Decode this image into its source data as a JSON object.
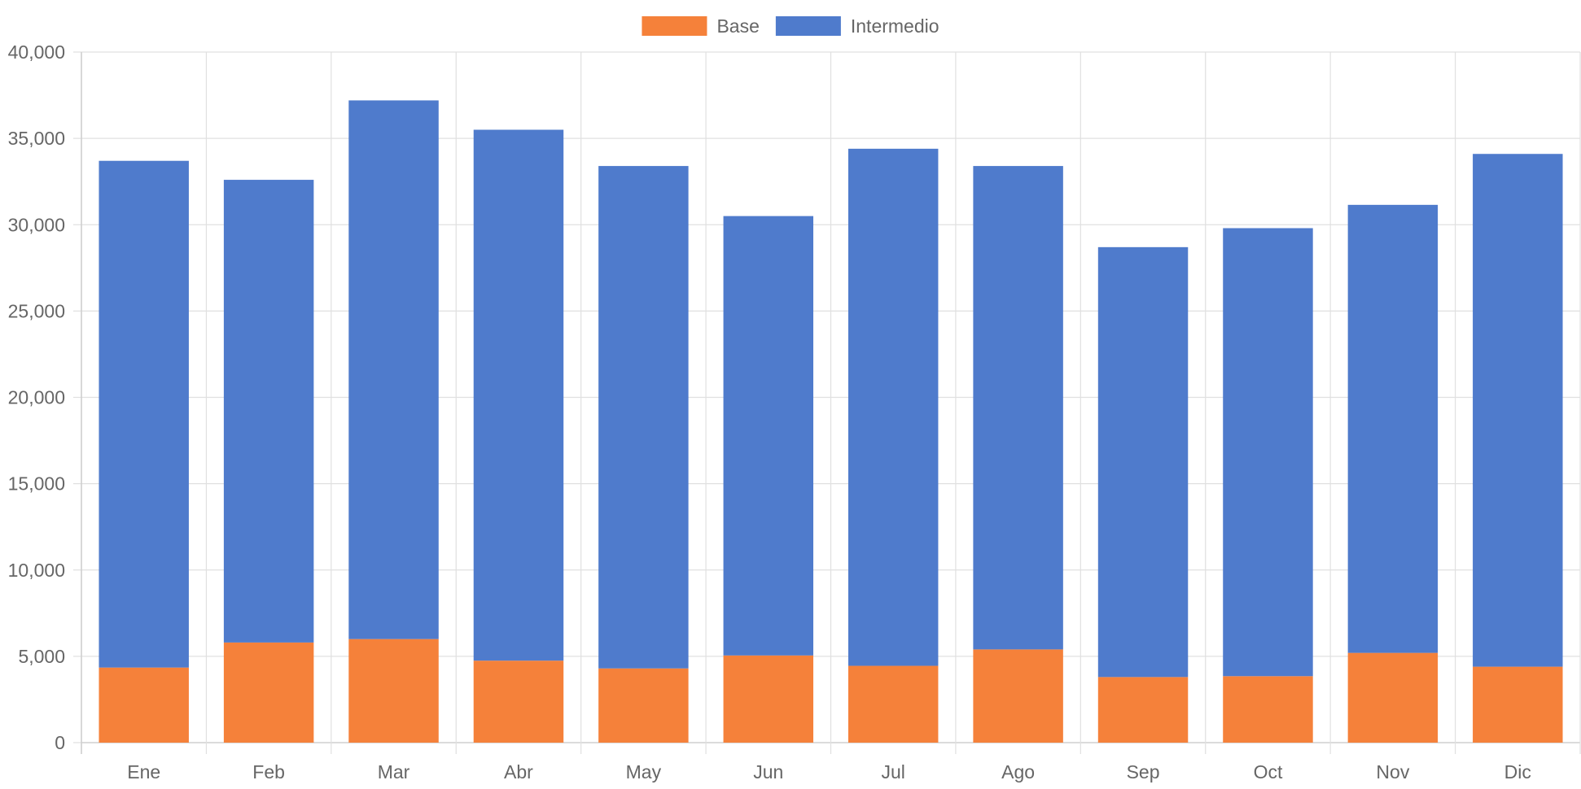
{
  "chart_data": {
    "type": "bar",
    "stacked": true,
    "categories": [
      "Ene",
      "Feb",
      "Mar",
      "Abr",
      "May",
      "Jun",
      "Jul",
      "Ago",
      "Sep",
      "Oct",
      "Nov",
      "Dic"
    ],
    "series": [
      {
        "name": "Base",
        "color": "#f5813a",
        "values": [
          4350,
          5800,
          6000,
          4750,
          4300,
          5050,
          4450,
          5400,
          3800,
          3850,
          5200,
          4400
        ]
      },
      {
        "name": "Intermedio",
        "color": "#4f7bcc",
        "values": [
          29350,
          26800,
          31200,
          30750,
          29100,
          25450,
          29950,
          28000,
          24900,
          25950,
          25950,
          29700
        ]
      }
    ],
    "yticks": [
      "0",
      "5,000",
      "10,000",
      "15,000",
      "20,000",
      "25,000",
      "30,000",
      "35,000",
      "40,000"
    ],
    "ylim": [
      0,
      40000
    ],
    "legend_position": "top",
    "grid": true,
    "title": "",
    "xlabel": "",
    "ylabel": ""
  }
}
